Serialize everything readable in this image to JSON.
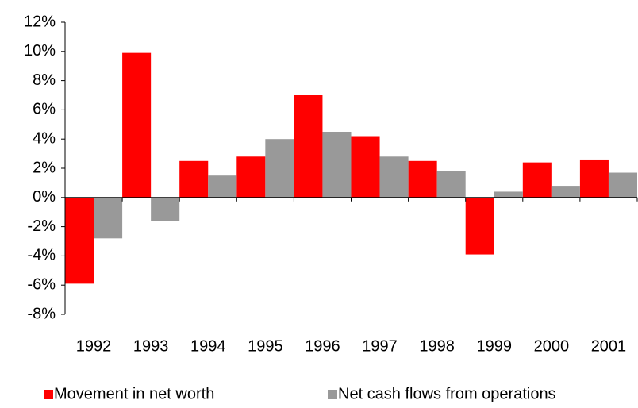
{
  "chart_data": {
    "type": "bar",
    "categories": [
      "1992",
      "1993",
      "1994",
      "1995",
      "1996",
      "1997",
      "1998",
      "1999",
      "2000",
      "2001"
    ],
    "series": [
      {
        "name": "Movement in net worth",
        "color": "#ff0000",
        "values": [
          -5.9,
          9.9,
          2.5,
          2.8,
          7.0,
          4.2,
          2.5,
          -3.9,
          2.4,
          2.6
        ]
      },
      {
        "name": "Net cash flows from operations",
        "color": "#999999",
        "values": [
          -2.8,
          -1.6,
          1.5,
          4.0,
          4.5,
          2.8,
          1.8,
          0.4,
          0.8,
          1.7
        ]
      }
    ],
    "ylim": [
      -8,
      12
    ],
    "yticks": [
      {
        "value": -8,
        "label": "-8%"
      },
      {
        "value": -6,
        "label": "-6%"
      },
      {
        "value": -4,
        "label": "-4%"
      },
      {
        "value": -2,
        "label": "-2%"
      },
      {
        "value": 0,
        "label": "0%"
      },
      {
        "value": 2,
        "label": "2%"
      },
      {
        "value": 4,
        "label": "4%"
      },
      {
        "value": 6,
        "label": "6%"
      },
      {
        "value": 8,
        "label": "8%"
      },
      {
        "value": 10,
        "label": "10%"
      },
      {
        "value": 12,
        "label": "12%"
      }
    ],
    "grid": false,
    "legend": "bottom"
  }
}
